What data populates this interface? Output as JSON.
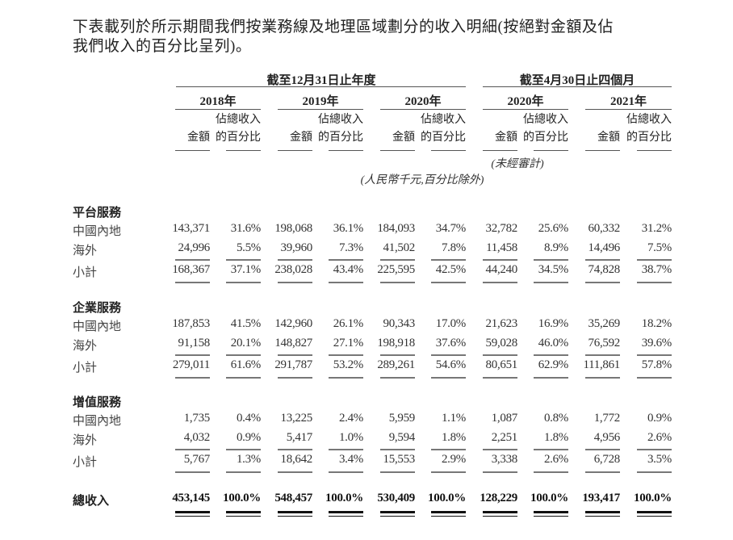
{
  "intro": {
    "line1": "下表載列於所示期間我們按業務線及地理區域劃分的收入明細(按絕對金額及佔",
    "line2": "我們收入的百分比呈列)。"
  },
  "header": {
    "group1": "截至12月31日止年度",
    "group2": "截至4月30日止四個月",
    "years": [
      "2018年",
      "2019年",
      "2020年",
      "2020年",
      "2021年"
    ],
    "amount": "金額",
    "pct_line1": "佔總收入",
    "pct_line2": "的百分比",
    "unaudited": "(未經審計)",
    "unit_note": "(人民幣千元,百分比除外)"
  },
  "sections": [
    {
      "title": "平台服務",
      "rows": [
        {
          "label": "中國內地",
          "values": [
            "143,371",
            "31.6%",
            "198,068",
            "36.1%",
            "184,093",
            "34.7%",
            "32,782",
            "25.6%",
            "60,332",
            "31.2%"
          ]
        },
        {
          "label": "海外",
          "values": [
            "24,996",
            "5.5%",
            "39,960",
            "7.3%",
            "41,502",
            "7.8%",
            "11,458",
            "8.9%",
            "14,496",
            "7.5%"
          ]
        },
        {
          "label": "小計",
          "values": [
            "168,367",
            "37.1%",
            "238,028",
            "43.4%",
            "225,595",
            "42.5%",
            "44,240",
            "34.5%",
            "74,828",
            "38.7%"
          ]
        }
      ]
    },
    {
      "title": "企業服務",
      "rows": [
        {
          "label": "中國內地",
          "values": [
            "187,853",
            "41.5%",
            "142,960",
            "26.1%",
            "90,343",
            "17.0%",
            "21,623",
            "16.9%",
            "35,269",
            "18.2%"
          ]
        },
        {
          "label": "海外",
          "values": [
            "91,158",
            "20.1%",
            "148,827",
            "27.1%",
            "198,918",
            "37.6%",
            "59,028",
            "46.0%",
            "76,592",
            "39.6%"
          ]
        },
        {
          "label": "小計",
          "values": [
            "279,011",
            "61.6%",
            "291,787",
            "53.2%",
            "289,261",
            "54.6%",
            "80,651",
            "62.9%",
            "111,861",
            "57.8%"
          ]
        }
      ]
    },
    {
      "title": "增值服務",
      "rows": [
        {
          "label": "中國內地",
          "values": [
            "1,735",
            "0.4%",
            "13,225",
            "2.4%",
            "5,959",
            "1.1%",
            "1,087",
            "0.8%",
            "1,772",
            "0.9%"
          ]
        },
        {
          "label": "海外",
          "values": [
            "4,032",
            "0.9%",
            "5,417",
            "1.0%",
            "9,594",
            "1.8%",
            "2,251",
            "1.8%",
            "4,956",
            "2.6%"
          ]
        },
        {
          "label": "小計",
          "values": [
            "5,767",
            "1.3%",
            "18,642",
            "3.4%",
            "15,553",
            "2.9%",
            "3,338",
            "2.6%",
            "6,728",
            "3.5%"
          ]
        }
      ]
    }
  ],
  "total": {
    "label": "總收入",
    "values": [
      "453,145",
      "100.0%",
      "548,457",
      "100.0%",
      "530,409",
      "100.0%",
      "128,229",
      "100.0%",
      "193,417",
      "100.0%"
    ]
  }
}
